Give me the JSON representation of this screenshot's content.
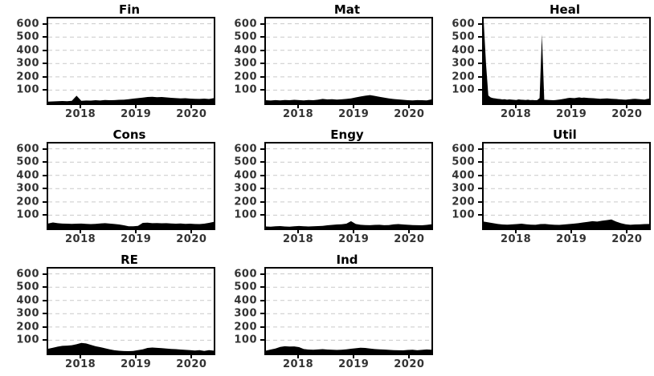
{
  "chart_data": {
    "type": "area",
    "layout": {
      "rows": 3,
      "cols": 3,
      "legend": "none",
      "grid": "horizontal-dashed"
    },
    "x_axis": {
      "domain": [
        2017.42,
        2020.4
      ],
      "ticks": [
        2018,
        2019,
        2020
      ],
      "tick_labels": [
        "2018",
        "2019",
        "2020"
      ]
    },
    "y_axis": {
      "min": 0,
      "render_max": 640,
      "ticks": [
        100,
        200,
        300,
        400,
        500,
        600
      ]
    },
    "colors": {
      "series_fill": "#000000",
      "plot_border": "#000000",
      "gridline": "#c9c9c9",
      "tick_text": "#333333",
      "title_text": "#000000",
      "background": "#ffffff"
    },
    "charts": [
      {
        "title": "Fin",
        "values": [
          14,
          15,
          16,
          18,
          17,
          20,
          58,
          20,
          22,
          21,
          24,
          22,
          26,
          24,
          25,
          27,
          28,
          32,
          36,
          40,
          44,
          48,
          50,
          47,
          48,
          45,
          42,
          40,
          38,
          39,
          36,
          35,
          34,
          36,
          33,
          40
        ]
      },
      {
        "title": "Mat",
        "values": [
          24,
          22,
          25,
          23,
          26,
          24,
          27,
          25,
          23,
          26,
          24,
          28,
          34,
          30,
          32,
          29,
          31,
          34,
          38,
          45,
          52,
          58,
          63,
          57,
          50,
          44,
          38,
          33,
          30,
          27,
          24,
          23,
          25,
          24,
          23,
          30
        ]
      },
      {
        "title": "Heal",
        "values": [
          620,
          300,
          60,
          45,
          40,
          38,
          35,
          33,
          30,
          32,
          28,
          30,
          29,
          27,
          26,
          30,
          28,
          27,
          26,
          28,
          25,
          26,
          24,
          25,
          40,
          520,
          28,
          27,
          26,
          25,
          24,
          26,
          28,
          30,
          33,
          36,
          40,
          42,
          41,
          40,
          43,
          45,
          42,
          44,
          42,
          41,
          40,
          39,
          38,
          36,
          35,
          36,
          37,
          38,
          36,
          35,
          34,
          33,
          31,
          30,
          29,
          28,
          30,
          32,
          34,
          35,
          33,
          32,
          30,
          29,
          33,
          36
        ]
      },
      {
        "title": "Cons",
        "values": [
          38,
          45,
          40,
          37,
          36,
          35,
          36,
          37,
          35,
          33,
          35,
          38,
          40,
          37,
          34,
          30,
          24,
          17,
          16,
          20,
          42,
          44,
          40,
          41,
          39,
          40,
          38,
          36,
          38,
          35,
          36,
          34,
          33,
          36,
          42,
          50
        ]
      },
      {
        "title": "Engy",
        "values": [
          15,
          14,
          16,
          18,
          15,
          14,
          16,
          19,
          17,
          15,
          16,
          18,
          20,
          24,
          27,
          30,
          32,
          36,
          55,
          34,
          28,
          26,
          25,
          27,
          28,
          25,
          26,
          31,
          33,
          30,
          28,
          26,
          25,
          24,
          27,
          32
        ]
      },
      {
        "title": "Util",
        "values": [
          52,
          46,
          40,
          34,
          30,
          29,
          31,
          33,
          36,
          32,
          29,
          28,
          33,
          34,
          30,
          28,
          27,
          30,
          33,
          36,
          40,
          45,
          50,
          55,
          52,
          58,
          63,
          68,
          52,
          40,
          32,
          28,
          30,
          31,
          33,
          34
        ]
      },
      {
        "title": "RE",
        "values": [
          36,
          44,
          52,
          58,
          60,
          63,
          70,
          80,
          76,
          66,
          55,
          48,
          40,
          32,
          25,
          21,
          19,
          18,
          20,
          26,
          32,
          42,
          45,
          43,
          41,
          38,
          35,
          33,
          30,
          28,
          26,
          23,
          26,
          20,
          26,
          22
        ]
      },
      {
        "title": "Ind",
        "values": [
          22,
          30,
          38,
          50,
          55,
          53,
          54,
          48,
          34,
          30,
          29,
          31,
          33,
          30,
          29,
          27,
          29,
          32,
          36,
          40,
          44,
          42,
          38,
          34,
          32,
          30,
          28,
          26,
          25,
          24,
          27,
          29,
          25,
          28,
          31,
          29
        ]
      }
    ]
  }
}
